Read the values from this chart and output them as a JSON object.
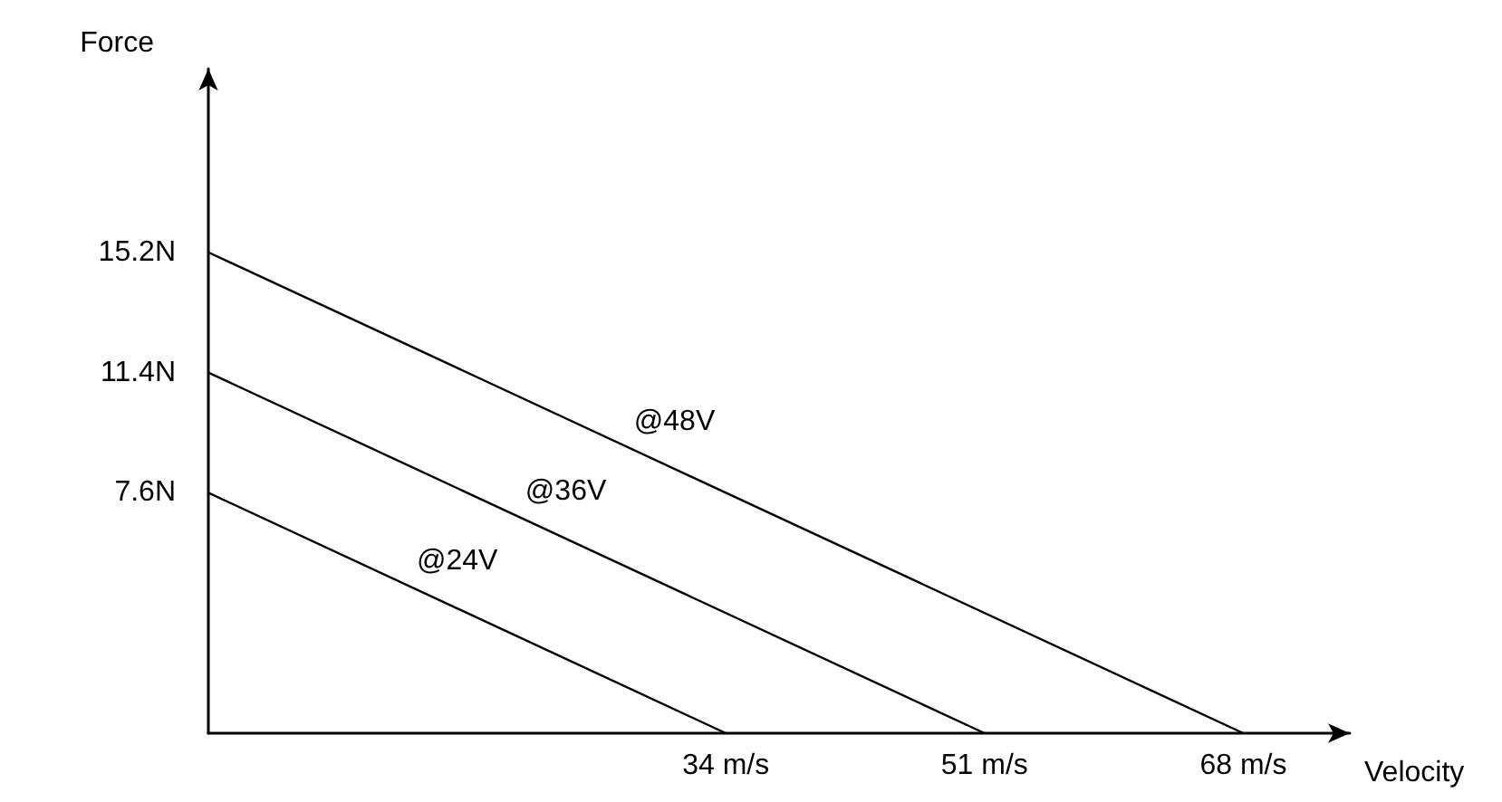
{
  "chart_data": {
    "type": "line",
    "xlabel": "Velocity",
    "ylabel": "Force",
    "xlim": [
      0,
      75
    ],
    "ylim": [
      0,
      21
    ],
    "xticks": [
      {
        "value": 34,
        "label": "34 m/s"
      },
      {
        "value": 51,
        "label": "51 m/s"
      },
      {
        "value": 68,
        "label": "68 m/s"
      }
    ],
    "yticks": [
      {
        "value": 7.6,
        "label": "7.6N"
      },
      {
        "value": 11.4,
        "label": "11.4N"
      },
      {
        "value": 15.2,
        "label": "15.2N"
      }
    ],
    "series": [
      {
        "name": "@48V",
        "color": "#000000",
        "x": [
          0,
          68
        ],
        "values": [
          15.2,
          0
        ]
      },
      {
        "name": "@36V",
        "color": "#000000",
        "x": [
          0,
          51
        ],
        "values": [
          11.4,
          0
        ]
      },
      {
        "name": "@24V",
        "color": "#000000",
        "x": [
          0,
          34
        ],
        "values": [
          7.6,
          0
        ]
      }
    ],
    "marker": "none",
    "line_style": "solid",
    "grid": false,
    "legend": false
  }
}
